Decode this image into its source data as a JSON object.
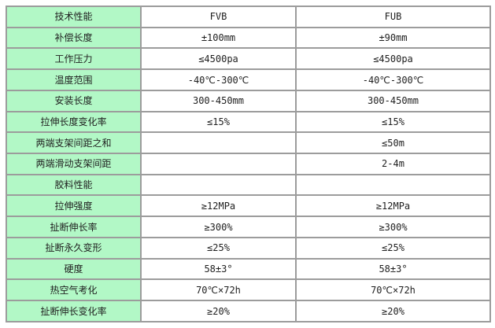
{
  "table": {
    "title": "technical-performance-spec-table",
    "rows": [
      {
        "label": "技术性能",
        "fvb": "FVB",
        "fub": "FUB"
      },
      {
        "label": "补偿长度",
        "fvb": "±100mm",
        "fub": "±90mm"
      },
      {
        "label": "工作压力",
        "fvb": "≤4500pa",
        "fub": "≤4500pa"
      },
      {
        "label": "温度范围",
        "fvb": "-40℃-300℃",
        "fub": "-40℃-300℃"
      },
      {
        "label": "安装长度",
        "fvb": "300-450mm",
        "fub": "300-450mm"
      },
      {
        "label": "拉伸长度变化率",
        "fvb": "≤15%",
        "fub": "≤15%"
      },
      {
        "label": "两端支架间距之和",
        "fvb": "",
        "fub": "≤50m"
      },
      {
        "label": "两端滑动支架间距",
        "fvb": "",
        "fub": "2-4m"
      },
      {
        "label": "胶料性能",
        "fvb": "",
        "fub": ""
      },
      {
        "label": "拉伸强度",
        "fvb": "≥12MPa",
        "fub": "≥12MPa"
      },
      {
        "label": "扯断伸长率",
        "fvb": "≥300%",
        "fub": "≥300%"
      },
      {
        "label": "扯断永久变形",
        "fvb": "≤25%",
        "fub": "≤25%"
      },
      {
        "label": "硬度",
        "fvb": "58±3°",
        "fub": "58±3°"
      },
      {
        "label": "热空气考化",
        "fvb": "70℃×72h",
        "fub": "70℃×72h"
      },
      {
        "label": "扯断伸长变化率",
        "fvb": "≥20%",
        "fub": "≥20%"
      }
    ]
  },
  "colors": {
    "label_cell_bg": "#b2f8c6",
    "border": "#9c9c9c",
    "text": "#1f1f1f",
    "page_bg": "#ffffff"
  }
}
